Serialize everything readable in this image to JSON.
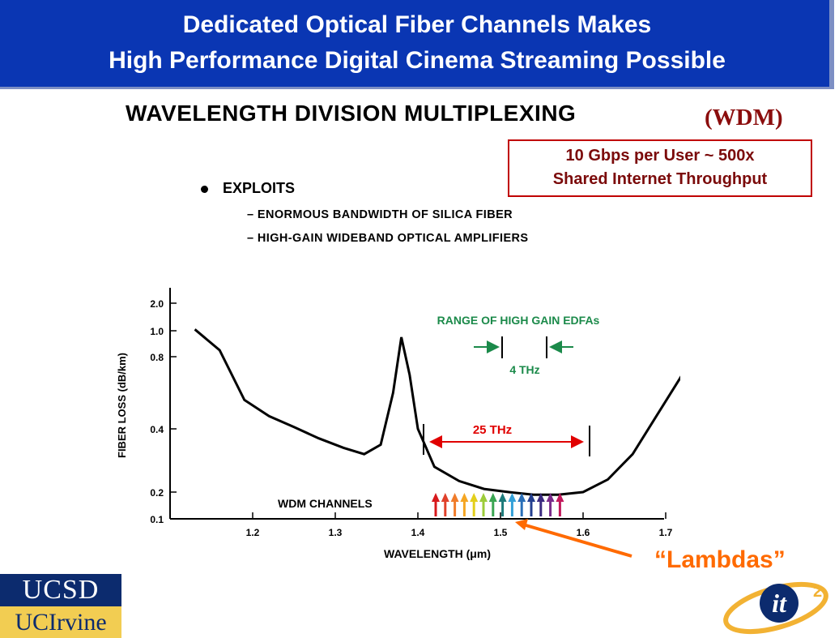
{
  "title": {
    "line1": "Dedicated Optical Fiber Channels Makes",
    "line2": "High Performance Digital Cinema Streaming Possible"
  },
  "heading": "WAVELENGTH DIVISION MULTIPLEXING",
  "heading_suffix": "(WDM)",
  "callout": {
    "line1": "10 Gbps per User ~ 500x",
    "line2": "Shared Internet Throughput"
  },
  "bullet": {
    "main": "EXPLOITS",
    "subs": [
      "– ENORMOUS BANDWIDTH OF SILICA FIBER",
      "– HIGH-GAIN WIDEBAND OPTICAL AMPLIFIERS"
    ]
  },
  "chart_data": {
    "type": "line",
    "ylabel": "FIBER LOSS (dB/km)",
    "xlabel": "WAVELENGTH (μm)",
    "x_ticks": [
      "1.2",
      "1.3",
      "1.4",
      "1.5",
      "1.6",
      "1.7"
    ],
    "y_ticks": [
      "2.0",
      "1.0",
      "0.8",
      "0.4",
      "0.2",
      "0.1"
    ],
    "series": [
      {
        "x": [
          1.13,
          1.16,
          1.19,
          1.22,
          1.25,
          1.28,
          1.31,
          1.335,
          1.355,
          1.37,
          1.38,
          1.39,
          1.4,
          1.42,
          1.45,
          1.48,
          1.51,
          1.54,
          1.57,
          1.6,
          1.63,
          1.66,
          1.69,
          1.72
        ],
        "y": [
          1.05,
          0.85,
          0.56,
          0.47,
          0.41,
          0.37,
          0.34,
          0.32,
          0.35,
          0.6,
          0.95,
          0.7,
          0.4,
          0.28,
          0.235,
          0.21,
          0.2,
          0.19,
          0.19,
          0.2,
          0.24,
          0.32,
          0.48,
          0.7
        ]
      }
    ],
    "annotations": {
      "range_label": "RANGE OF HIGH GAIN EDFAs",
      "edfa_band": "4 THz",
      "band": "25 THz",
      "channels_label": "WDM CHANNELS"
    },
    "channel_colors": [
      "#d7191c",
      "#e0412b",
      "#f07c2a",
      "#f5a623",
      "#e3cf1c",
      "#9dcc3a",
      "#3ba552",
      "#1c7a7a",
      "#33a0d8",
      "#2a6fb8",
      "#243f8f",
      "#3b2a80",
      "#7a2b8a",
      "#c2185b"
    ]
  },
  "lambdas_label": "“Lambdas”",
  "logos": {
    "ucsd": "UCSD",
    "uci": "UCIrvine",
    "it2": "it",
    "it2_sup": "2"
  },
  "colors": {
    "title_bg": "#0a36b3",
    "accent_red": "#c00000",
    "accent_orange": "#ff6a00",
    "ucsd_blue": "#0c2b6e",
    "uci_gold": "#f2cd52"
  }
}
